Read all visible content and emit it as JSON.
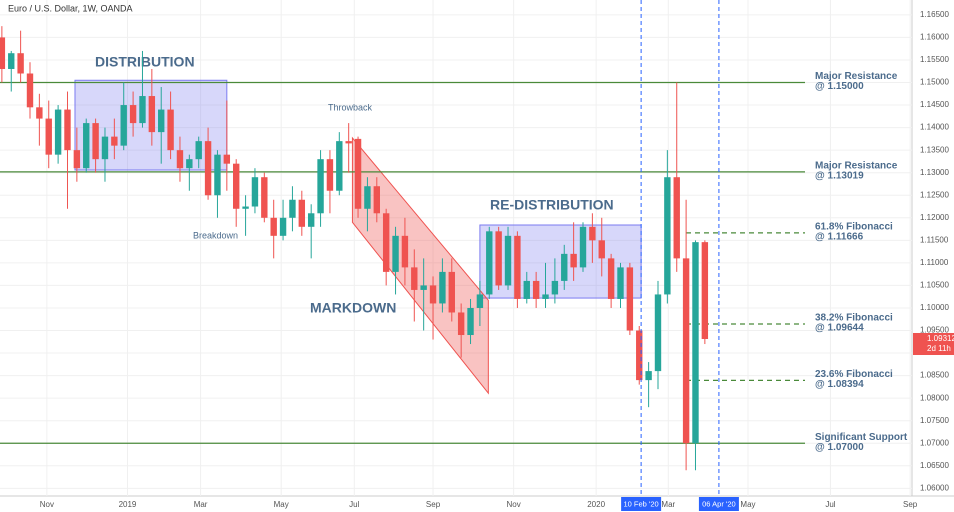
{
  "chart_data": {
    "type": "candlestick",
    "title": "Euro / U.S. Dollar, 1W, OANDA",
    "up_color": "#26a69a",
    "down_color": "#ef5350",
    "grid": true,
    "xlim": [
      -0.2,
      97.1
    ],
    "ylim": [
      1.0583,
      1.1683
    ],
    "xticks": [
      {
        "value": 4.8,
        "label": "Nov"
      },
      {
        "value": 13.4,
        "label": "2019"
      },
      {
        "value": 21.2,
        "label": "Mar"
      },
      {
        "value": 29.8,
        "label": "May"
      },
      {
        "value": 37.6,
        "label": "Jul"
      },
      {
        "value": 46,
        "label": "Sep"
      },
      {
        "value": 54.6,
        "label": "Nov"
      },
      {
        "value": 63.4,
        "label": "2020"
      },
      {
        "value": 71.1,
        "label": "Mar"
      },
      {
        "value": 79.6,
        "label": "May"
      },
      {
        "value": 88.4,
        "label": "Jul"
      },
      {
        "value": 96.9,
        "label": "Sep"
      }
    ],
    "yticks": [
      {
        "value": 1.06,
        "label": "1.06000"
      },
      {
        "value": 1.065,
        "label": "1.06500"
      },
      {
        "value": 1.07,
        "label": "1.07000"
      },
      {
        "value": 1.075,
        "label": "1.07500"
      },
      {
        "value": 1.08,
        "label": "1.08000"
      },
      {
        "value": 1.085,
        "label": "1.08500"
      },
      {
        "value": 1.09,
        "label": "1.09000"
      },
      {
        "value": 1.095,
        "label": "1.09500"
      },
      {
        "value": 1.1,
        "label": "1.10000"
      },
      {
        "value": 1.105,
        "label": "1.10500"
      },
      {
        "value": 1.11,
        "label": "1.11000"
      },
      {
        "value": 1.115,
        "label": "1.11500"
      },
      {
        "value": 1.12,
        "label": "1.12000"
      },
      {
        "value": 1.125,
        "label": "1.12500"
      },
      {
        "value": 1.13,
        "label": "1.13000"
      },
      {
        "value": 1.135,
        "label": "1.13500"
      },
      {
        "value": 1.14,
        "label": "1.14000"
      },
      {
        "value": 1.145,
        "label": "1.14500"
      },
      {
        "value": 1.15,
        "label": "1.15000"
      },
      {
        "value": 1.155,
        "label": "1.15500"
      },
      {
        "value": 1.16,
        "label": "1.16000"
      },
      {
        "value": 1.165,
        "label": "1.16500"
      }
    ],
    "x": [
      0,
      1,
      2,
      3,
      4,
      5,
      6,
      7,
      8,
      9,
      10,
      11,
      12,
      13,
      14,
      15,
      16,
      17,
      18,
      19,
      20,
      21,
      22,
      23,
      24,
      25,
      26,
      27,
      28,
      29,
      30,
      31,
      32,
      33,
      34,
      35,
      36,
      37,
      38,
      39,
      40,
      41,
      42,
      43,
      44,
      45,
      46,
      47,
      48,
      49,
      50,
      51,
      52,
      53,
      54,
      55,
      56,
      57,
      58,
      59,
      60,
      61,
      62,
      63,
      64,
      65,
      66,
      67,
      68,
      69,
      70,
      71,
      72,
      73,
      74,
      75
    ],
    "open": [
      1.16,
      1.153,
      1.1565,
      1.152,
      1.1445,
      1.142,
      1.134,
      1.144,
      1.135,
      1.131,
      1.141,
      1.133,
      1.138,
      1.136,
      1.145,
      1.141,
      1.147,
      1.139,
      1.144,
      1.135,
      1.131,
      1.133,
      1.137,
      1.125,
      1.134,
      1.132,
      1.122,
      1.1225,
      1.129,
      1.12,
      1.116,
      1.12,
      1.124,
      1.118,
      1.121,
      1.133,
      1.126,
      1.137,
      1.1375,
      1.122,
      1.127,
      1.121,
      1.108,
      1.116,
      1.109,
      1.104,
      1.105,
      1.101,
      1.108,
      1.099,
      1.094,
      1.1,
      1.103,
      1.117,
      1.105,
      1.116,
      1.102,
      1.106,
      1.102,
      1.103,
      1.106,
      1.112,
      1.109,
      1.118,
      1.115,
      1.111,
      1.102,
      1.109,
      1.095,
      1.084,
      1.086,
      1.103,
      1.129,
      1.111,
      1.07,
      1.1146
    ],
    "high": [
      1.1625,
      1.157,
      1.1615,
      1.1545,
      1.1475,
      1.146,
      1.145,
      1.148,
      1.14,
      1.142,
      1.142,
      1.14,
      1.142,
      1.15,
      1.148,
      1.157,
      1.153,
      1.149,
      1.148,
      1.138,
      1.134,
      1.138,
      1.14,
      1.135,
      1.146,
      1.133,
      1.125,
      1.131,
      1.13,
      1.124,
      1.124,
      1.127,
      1.126,
      1.123,
      1.135,
      1.135,
      1.139,
      1.141,
      1.138,
      1.129,
      1.129,
      1.122,
      1.118,
      1.12,
      1.113,
      1.111,
      1.107,
      1.111,
      1.111,
      1.101,
      1.102,
      1.106,
      1.118,
      1.118,
      1.118,
      1.117,
      1.108,
      1.108,
      1.11,
      1.111,
      1.114,
      1.119,
      1.119,
      1.121,
      1.12,
      1.112,
      1.11,
      1.11,
      1.096,
      1.088,
      1.106,
      1.135,
      1.15,
      1.124,
      1.115,
      1.115
    ],
    "low": [
      1.15,
      1.148,
      1.15,
      1.142,
      1.136,
      1.131,
      1.132,
      1.122,
      1.128,
      1.13,
      1.13,
      1.128,
      1.133,
      1.135,
      1.138,
      1.14,
      1.136,
      1.132,
      1.133,
      1.128,
      1.126,
      1.131,
      1.124,
      1.12,
      1.126,
      1.118,
      1.116,
      1.121,
      1.119,
      1.111,
      1.115,
      1.117,
      1.116,
      1.111,
      1.118,
      1.121,
      1.125,
      1.13,
      1.12,
      1.117,
      1.119,
      1.105,
      1.103,
      1.105,
      1.097,
      1.095,
      1.093,
      1.099,
      1.097,
      1.089,
      1.092,
      1.096,
      1.102,
      1.104,
      1.104,
      1.1,
      1.101,
      1.1,
      1.1,
      1.101,
      1.104,
      1.106,
      1.108,
      1.11,
      1.107,
      1.1,
      1.1,
      1.094,
      1.083,
      1.078,
      1.082,
      1.101,
      1.108,
      1.064,
      1.064,
      1.092
    ],
    "close": [
      1.153,
      1.1565,
      1.152,
      1.1445,
      1.142,
      1.134,
      1.144,
      1.135,
      1.131,
      1.141,
      1.133,
      1.138,
      1.136,
      1.145,
      1.141,
      1.147,
      1.139,
      1.144,
      1.135,
      1.131,
      1.133,
      1.137,
      1.125,
      1.134,
      1.132,
      1.122,
      1.1225,
      1.129,
      1.12,
      1.116,
      1.12,
      1.124,
      1.118,
      1.121,
      1.133,
      1.126,
      1.137,
      1.1365,
      1.122,
      1.127,
      1.121,
      1.108,
      1.116,
      1.109,
      1.104,
      1.105,
      1.101,
      1.108,
      1.099,
      1.094,
      1.1,
      1.103,
      1.117,
      1.105,
      1.116,
      1.102,
      1.106,
      1.102,
      1.103,
      1.106,
      1.112,
      1.109,
      1.118,
      1.115,
      1.111,
      1.102,
      1.109,
      1.095,
      1.084,
      1.086,
      1.103,
      1.129,
      1.111,
      1.07,
      1.1146,
      1.09312
    ],
    "levels": [
      {
        "name": "Major Resistance",
        "value": 1.15,
        "value_label": "@ 1.15000",
        "style": "solid"
      },
      {
        "name": "Major Resistance",
        "value": 1.13019,
        "value_label": "@ 1.13019",
        "style": "solid"
      },
      {
        "name": "61.8% Fibonacci",
        "value": 1.11666,
        "value_label": "@ 1.11666",
        "style": "dashed"
      },
      {
        "name": "38.2% Fibonacci",
        "value": 1.09644,
        "value_label": "@ 1.09644",
        "style": "dashed"
      },
      {
        "name": "23.6% Fibonacci",
        "value": 1.08394,
        "value_label": "@ 1.08394",
        "style": "dashed"
      },
      {
        "name": "Significant Support",
        "value": 1.07,
        "value_label": "@ 1.07000",
        "style": "solid"
      }
    ],
    "level_color": "#4a8a3a",
    "boxes": [
      {
        "label": "DISTRIBUTION",
        "x": [
          7.8,
          24
        ],
        "y": [
          1.1306,
          1.1505
        ],
        "color": "#7b7bf0"
      },
      {
        "label": "RE-DISTRIBUTION",
        "x": [
          51,
          68.2
        ],
        "y": [
          1.1022,
          1.1184
        ],
        "color": "#7b7bf0"
      }
    ],
    "channel": {
      "label": "MARKDOWN",
      "x": [
        37.4,
        51.9
      ],
      "upper": [
        1.1377,
        1.1017
      ],
      "lower": [
        1.119,
        1.0811
      ],
      "color": "#ef5350"
    },
    "annotations": [
      "Throwback",
      "Breakdown"
    ],
    "vlines": [
      {
        "value": 68.2,
        "label": "10 Feb '20"
      },
      {
        "value": 76.5,
        "label": "06 Apr '20"
      }
    ],
    "vline_color": "#2962ff",
    "last_price": {
      "value": 1.09312,
      "label": "1.09312",
      "countdown": "2d 11h"
    }
  }
}
